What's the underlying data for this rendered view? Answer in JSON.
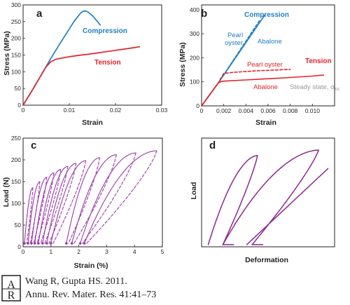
{
  "chart_data": [
    {
      "id": "a",
      "type": "line",
      "panel_label": "a",
      "xlabel": "Strain",
      "ylabel": "Stress (MPa)",
      "xlim": [
        0,
        0.03
      ],
      "ylim": [
        0,
        300
      ],
      "xticks": [
        0,
        0.01,
        0.02,
        0.03
      ],
      "xtick_labels": [
        "0",
        "0.01",
        "0.02",
        "0.03"
      ],
      "yticks": [
        0,
        50,
        100,
        150,
        200,
        250,
        300
      ],
      "ytick_labels": [
        "0",
        "50",
        "100",
        "150",
        "200",
        "250",
        "300"
      ],
      "series": [
        {
          "name": "Compression",
          "color": "#1f7fc0",
          "x": [
            0,
            0.002,
            0.004,
            0.006,
            0.008,
            0.01,
            0.011,
            0.012,
            0.0125,
            0.013,
            0.0135,
            0.014,
            0.015,
            0.016,
            0.0167
          ],
          "y": [
            0,
            45,
            92,
            140,
            185,
            228,
            250,
            268,
            276,
            281,
            282,
            279,
            268,
            252,
            240
          ]
        },
        {
          "name": "Tension",
          "color": "#e2232a",
          "x": [
            0,
            0.002,
            0.004,
            0.005,
            0.006,
            0.007,
            0.008,
            0.01,
            0.012,
            0.014,
            0.016,
            0.018,
            0.02,
            0.022,
            0.024,
            0.0252
          ],
          "y": [
            0,
            45,
            92,
            115,
            130,
            137,
            140,
            145,
            149,
            152,
            156,
            160,
            164,
            168,
            172,
            175
          ]
        }
      ]
    },
    {
      "id": "b",
      "type": "line",
      "panel_label": "b",
      "xlabel": "Strain",
      "ylabel": "Stress (MPa)",
      "xlim": [
        0,
        0.012
      ],
      "ylim": [
        0,
        420
      ],
      "xticks": [
        0,
        0.002,
        0.004,
        0.006,
        0.008,
        0.01
      ],
      "xtick_labels": [
        "0",
        "0.002",
        "0.004",
        "0.006",
        "0.008",
        "0.010"
      ],
      "yticks": [
        0,
        100,
        200,
        300,
        400
      ],
      "ytick_labels": [
        "0",
        "100",
        "200",
        "300",
        "400"
      ],
      "annotations": {
        "compression": "Compression",
        "pearl_oyster_1": "Pearl",
        "pearl_oyster_2": "oyster",
        "abalone_compression": "Abalone",
        "tension": "Tension",
        "pearl_oyster_tension": "Pearl oyster",
        "abalone_tension": "Abalone",
        "steady_state": "Steady state, σ",
        "steady_state_sub": "ss"
      },
      "series": [
        {
          "name": "Abalone compression",
          "color": "#1f7fc0",
          "dash": false,
          "x": [
            0,
            0.0015,
            0.0057
          ],
          "y": [
            0,
            95,
            378
          ]
        },
        {
          "name": "Pearl oyster compression",
          "color": "#1f7fc0",
          "dash": true,
          "x": [
            0,
            0.0015,
            0.0053
          ],
          "y": [
            0,
            95,
            360
          ]
        },
        {
          "name": "Pearl oyster tension",
          "color": "#e2232a",
          "dash": true,
          "x": [
            0,
            0.0015,
            0.0018,
            0.002,
            0.003,
            0.004,
            0.005,
            0.006,
            0.007,
            0.008
          ],
          "y": [
            0,
            95,
            120,
            135,
            140,
            143,
            146,
            148,
            150,
            152
          ]
        },
        {
          "name": "Abalone tension",
          "color": "#e2232a",
          "dash": false,
          "x": [
            0,
            0.0015,
            0.0017,
            0.002,
            0.004,
            0.006,
            0.008,
            0.01,
            0.011
          ],
          "y": [
            0,
            95,
            100,
            103,
            108,
            113,
            118,
            124,
            128
          ]
        }
      ]
    },
    {
      "id": "c",
      "type": "line",
      "panel_label": "c",
      "xlabel": "Strain (%)",
      "ylabel": "Load (N)",
      "xlim": [
        0,
        5
      ],
      "ylim": [
        0,
        250
      ],
      "xticks": [
        0,
        1,
        2,
        3,
        4,
        5
      ],
      "xtick_labels": [
        "0",
        "1",
        "2",
        "3",
        "4",
        "5"
      ],
      "yticks": [
        0,
        50,
        100,
        150,
        200,
        250
      ],
      "ytick_labels": [
        "0",
        "50",
        "100",
        "150",
        "200",
        "250"
      ],
      "color": "#9b3aa8",
      "cycles": [
        {
          "start": 0.05,
          "peak_x": 0.35,
          "peak_y": 136
        },
        {
          "start": 0.18,
          "peak_x": 0.6,
          "peak_y": 150
        },
        {
          "start": 0.3,
          "peak_x": 0.85,
          "peak_y": 160
        },
        {
          "start": 0.42,
          "peak_x": 1.1,
          "peak_y": 170
        },
        {
          "start": 0.55,
          "peak_x": 1.35,
          "peak_y": 178
        },
        {
          "start": 0.7,
          "peak_x": 1.6,
          "peak_y": 185
        },
        {
          "start": 0.85,
          "peak_x": 1.9,
          "peak_y": 192
        },
        {
          "start": 1.0,
          "peak_x": 2.25,
          "peak_y": 198
        },
        {
          "start": 1.55,
          "peak_x": 2.75,
          "peak_y": 205
        },
        {
          "start": 1.75,
          "peak_x": 3.35,
          "peak_y": 212
        },
        {
          "start": 2.05,
          "peak_x": 4.05,
          "peak_y": 216
        },
        {
          "start": 2.2,
          "peak_x": 4.8,
          "peak_y": 221
        }
      ]
    },
    {
      "id": "d",
      "type": "line",
      "panel_label": "d",
      "xlabel": "Deformation",
      "ylabel": "Load",
      "xlim": [
        0,
        10
      ],
      "ylim": [
        0,
        10
      ],
      "color": "#8b2a90",
      "loops": [
        {
          "start": 0.5,
          "peak_x": 4.2,
          "peak_y": 8.4,
          "end": 1.6
        },
        {
          "start": 1.6,
          "peak_x": 8.8,
          "peak_y": 8.9,
          "end": 3.8
        }
      ],
      "extra_line": {
        "x": [
          3.4,
          9.5
        ],
        "y": [
          0.0,
          7.0
        ]
      }
    }
  ],
  "credit": {
    "logo_letters": "AR",
    "line1": "Wang R, Gupta HS. 2011.",
    "line2": "Annu. Rev. Mater. Res. 41:41–73"
  }
}
